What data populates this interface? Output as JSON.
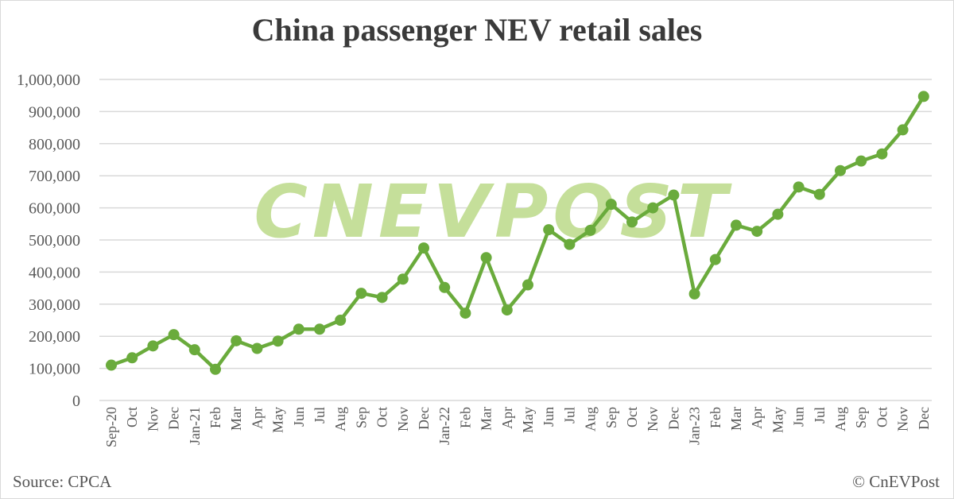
{
  "chart_data": {
    "type": "line",
    "title": "China passenger NEV retail sales",
    "categories": [
      "Sep-20",
      "Oct",
      "Nov",
      "Dec",
      "Jan-21",
      "Feb",
      "Mar",
      "Apr",
      "May",
      "Jun",
      "Jul",
      "Aug",
      "Sep",
      "Oct",
      "Nov",
      "Dec",
      "Jan-22",
      "Feb",
      "Mar",
      "Apr",
      "May",
      "Jun",
      "Jul",
      "Aug",
      "Sep",
      "Oct",
      "Nov",
      "Dec",
      "Jan-23",
      "Feb",
      "Mar",
      "Apr",
      "May",
      "Jun",
      "Jul",
      "Aug",
      "Sep",
      "Oct",
      "Nov",
      "Dec"
    ],
    "values": [
      110000,
      133000,
      170000,
      205000,
      158000,
      97000,
      186000,
      162000,
      185000,
      222000,
      222000,
      250000,
      334000,
      321000,
      378000,
      475000,
      352000,
      272000,
      445000,
      282000,
      360000,
      532000,
      486000,
      530000,
      611000,
      556000,
      600000,
      640000,
      332000,
      439000,
      546000,
      527000,
      580000,
      665000,
      642000,
      716000,
      746000,
      768000,
      843000,
      947000
    ],
    "ylim": [
      0,
      1000000
    ],
    "yticks": [
      "0",
      "100,000",
      "200,000",
      "300,000",
      "400,000",
      "500,000",
      "600,000",
      "700,000",
      "800,000",
      "900,000",
      "1,000,000"
    ],
    "grid": true,
    "line_color": "#6aab3c",
    "watermark_color": "#c5df9a"
  },
  "watermark": "CnEVPost",
  "source": "Source: CPCA",
  "credit": "© CnEVPost"
}
